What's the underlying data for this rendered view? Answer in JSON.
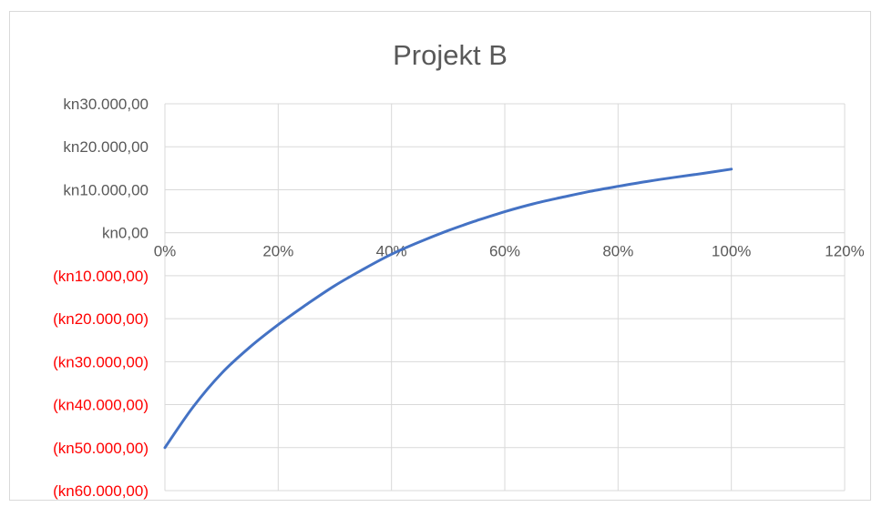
{
  "chart_data": {
    "type": "line",
    "title": "Projekt B",
    "xlabel": "",
    "ylabel": "",
    "x_ticks": [
      "0%",
      "20%",
      "40%",
      "60%",
      "80%",
      "100%",
      "120%"
    ],
    "x_tick_values": [
      0,
      0.2,
      0.4,
      0.6,
      0.8,
      1.0,
      1.2
    ],
    "y_ticks": [
      {
        "value": 30000,
        "label": "kn30.000,00",
        "negative": false
      },
      {
        "value": 20000,
        "label": "kn20.000,00",
        "negative": false
      },
      {
        "value": 10000,
        "label": "kn10.000,00",
        "negative": false
      },
      {
        "value": 0,
        "label": "kn0,00",
        "negative": false
      },
      {
        "value": -10000,
        "label": "(kn10.000,00)",
        "negative": true
      },
      {
        "value": -20000,
        "label": "(kn20.000,00)",
        "negative": true
      },
      {
        "value": -30000,
        "label": "(kn30.000,00)",
        "negative": true
      },
      {
        "value": -40000,
        "label": "(kn40.000,00)",
        "negative": true
      },
      {
        "value": -50000,
        "label": "(kn50.000,00)",
        "negative": true
      },
      {
        "value": -60000,
        "label": "(kn60.000,00)",
        "negative": true
      }
    ],
    "xlim": [
      0,
      1.2
    ],
    "ylim": [
      -60000,
      30000
    ],
    "grid": true,
    "legend": "none",
    "series": [
      {
        "color": "#4472c4",
        "x": [
          0,
          0.05,
          0.1,
          0.15,
          0.2,
          0.25,
          0.3,
          0.35,
          0.4,
          0.45,
          0.5,
          0.55,
          0.6,
          0.65,
          0.7,
          0.75,
          0.8,
          0.85,
          0.9,
          0.95,
          1.0
        ],
        "y": [
          -50000,
          -40500,
          -32700,
          -26600,
          -21400,
          -16700,
          -12300,
          -8500,
          -5000,
          -2100,
          500,
          2800,
          4900,
          6700,
          8200,
          9600,
          10800,
          11900,
          12900,
          13800,
          14800
        ]
      }
    ]
  }
}
